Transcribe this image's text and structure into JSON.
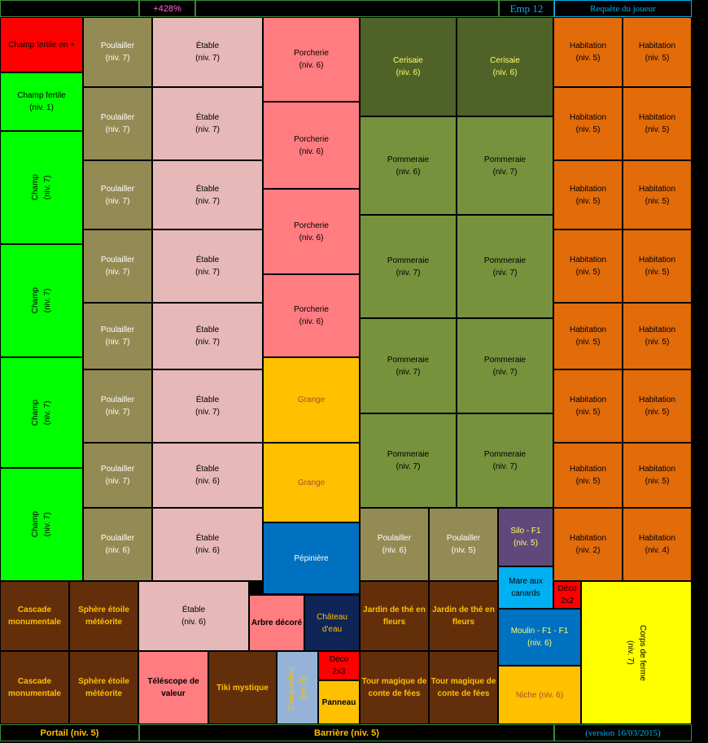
{
  "header": {
    "percent": "+428%",
    "emp": "Emp 12",
    "request": "Requête du joueur"
  },
  "footer": {
    "portail": "Portail (niv. 5)",
    "barriere": "Barrière (niv. 5)",
    "version": "(version 16/03/2015)"
  },
  "fields": [
    {
      "label": "Champ fertile en +"
    },
    {
      "label": "Champ fertile\n(niv. 1)"
    },
    {
      "label": "Champ\n(niv. 7)"
    },
    {
      "label": "Champ\n(niv. 7)"
    },
    {
      "label": "Champ\n(niv. 7)"
    },
    {
      "label": "Champ\n(niv. 7)"
    }
  ],
  "poulaillers": [
    {
      "label": "Poulailler\n(niv. 7)"
    },
    {
      "label": "Poulailler\n(niv. 7)"
    },
    {
      "label": "Poulailler\n(niv. 7)"
    },
    {
      "label": "Poulailler\n(niv. 7)"
    },
    {
      "label": "Poulailler\n(niv. 7)"
    },
    {
      "label": "Poulailler\n(niv. 7)"
    },
    {
      "label": "Poulailler\n(niv. 7)"
    },
    {
      "label": "Poulailler\n(niv. 6)"
    }
  ],
  "etables": [
    {
      "label": "Étable\n(niv. 7)"
    },
    {
      "label": "Étable\n(niv. 7)"
    },
    {
      "label": "Étable\n(niv. 7)"
    },
    {
      "label": "Étable\n(niv. 7)"
    },
    {
      "label": "Étable\n(niv. 7)"
    },
    {
      "label": "Étable\n(niv. 7)"
    },
    {
      "label": "Étable\n(niv. 6)"
    },
    {
      "label": "Étable\n(niv. 6)"
    }
  ],
  "porcheries": [
    {
      "label": "Porcherie\n(niv. 6)"
    },
    {
      "label": "Porcherie\n(niv. 6)"
    },
    {
      "label": "Porcherie\n(niv. 6)"
    },
    {
      "label": "Porcherie\n(niv. 6)"
    }
  ],
  "granges": [
    {
      "label": "Grange"
    },
    {
      "label": "Grange"
    }
  ],
  "pepiniere": {
    "label": "Pépinière"
  },
  "cerisaies": [
    {
      "label": "Cerisaie\n(niv. 6)"
    },
    {
      "label": "Cerisaie\n(niv. 6)"
    }
  ],
  "pommeraies": [
    {
      "label": "Pommeraie\n(niv. 6)"
    },
    {
      "label": "Pommeraie\n(niv. 7)"
    },
    {
      "label": "Pommeraie\n(niv. 7)"
    },
    {
      "label": "Pommeraie\n(niv. 7)"
    },
    {
      "label": "Pommeraie\n(niv. 7)"
    },
    {
      "label": "Pommeraie\n(niv. 7)"
    },
    {
      "label": "Pommeraie\n(niv. 7)"
    },
    {
      "label": "Pommeraie\n(niv. 7)"
    }
  ],
  "poulaillers_bottom": [
    {
      "label": "Poulailler\n(niv. 6)"
    },
    {
      "label": "Poulailler\n(niv. 5)"
    }
  ],
  "silo": {
    "label": "Silo - F1\n(niv. 5)"
  },
  "habitations": [
    {
      "label": "Habitation\n(niv. 5)"
    },
    {
      "label": "Habitation\n(niv. 5)"
    },
    {
      "label": "Habitation\n(niv. 5)"
    },
    {
      "label": "Habitation\n(niv. 5)"
    },
    {
      "label": "Habitation\n(niv. 5)"
    },
    {
      "label": "Habitation\n(niv. 5)"
    },
    {
      "label": "Habitation\n(niv. 5)"
    },
    {
      "label": "Habitation\n(niv. 5)"
    },
    {
      "label": "Habitation\n(niv. 5)"
    },
    {
      "label": "Habitation\n(niv. 5)"
    },
    {
      "label": "Habitation\n(niv. 5)"
    },
    {
      "label": "Habitation\n(niv. 5)"
    },
    {
      "label": "Habitation\n(niv. 5)"
    },
    {
      "label": "Habitation\n(niv. 5)"
    },
    {
      "label": "Habitation\n(niv. 2)"
    },
    {
      "label": "Habitation\n(niv. 4)"
    }
  ],
  "bottom": {
    "cascade1": "Cascade\nmonumentale",
    "sphere1": "Sphère étoile\nmétéorite",
    "etable_bottom": "Étable\n(niv. 6)",
    "arbre": "Arbre décoré",
    "chateau": "Château\nd'eau",
    "jardin1": "Jardin de thé en\nfleurs",
    "jardin2": "Jardin de thé en\nfleurs",
    "mare": "Mare aux\ncanards",
    "deco2x2": "Déco\n2x2",
    "moulin": "Moulin - F1 - F1\n(niv. 6)",
    "corps": "Corps de ferme\n(niv. 7)",
    "cascade2": "Cascade\nmonumentale",
    "sphere2": "Sphère étoile\nmétéorite",
    "telescope": "Téléscope de\nvaleur",
    "tiki": "Tiki mystique",
    "composteur": "Composteur\n(niv. 5)",
    "deco2x3": "Déco\n2x3",
    "panneau": "Panneau",
    "tour1": "Tour magique de\nconte de fées",
    "tour2": "Tour magique de\nconte de fées",
    "niche": "Niche (niv. 6)"
  },
  "colors": {
    "red": "#ff0000",
    "green": "#00ff00",
    "olive": "#948a54",
    "pink": "#e6b8b7",
    "salmon": "#ff7c80",
    "dark_olive": "#4f6228",
    "apple": "#76923c",
    "orange": "#e26b0a",
    "yellow": "#ffc000",
    "blue": "#0070c0",
    "brown": "#632f0b",
    "purple": "#60497a",
    "sky": "#00b0f0",
    "lemon": "#ffff00",
    "light_blue": "#95b3d7",
    "navy": "#0f2457",
    "gold_text": "#ffc000",
    "lime_text": "#ffff66"
  }
}
